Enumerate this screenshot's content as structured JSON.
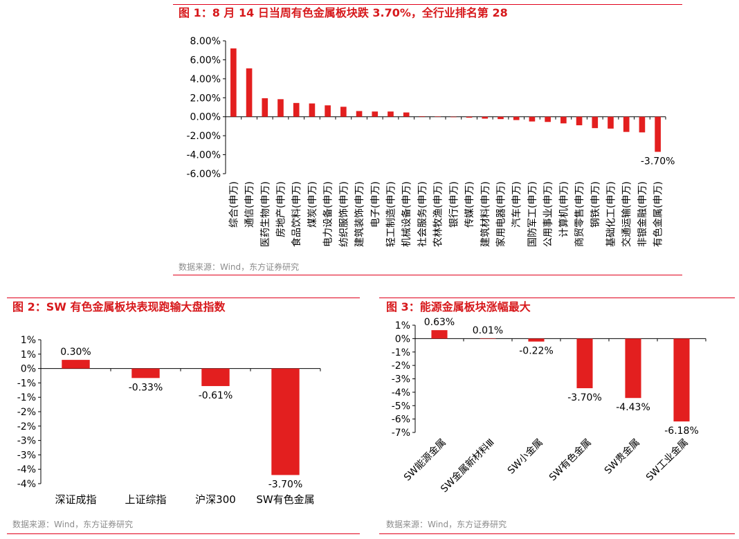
{
  "charts": [
    {
      "title": "图 1：8 月 14 日当周有色金属板块跌 3.70%，全行业排名第 28",
      "source": "数据来源：Wind，东方证券研究",
      "chart_data": {
        "type": "bar",
        "categories": [
          "综合(申万)",
          "通信(申万)",
          "医药生物(申万)",
          "房地产(申万)",
          "食品饮料(申万)",
          "煤炭(申万)",
          "电力设备(申万)",
          "纺织服饰(申万)",
          "建筑装饰(申万)",
          "电子(申万)",
          "轻工制造(申万)",
          "机械设备(申万)",
          "社会服务(申万)",
          "农林牧渔(申万)",
          "银行(申万)",
          "传媒(申万)",
          "建筑材料(申万)",
          "家用电器(申万)",
          "汽车(申万)",
          "国防军工(申万)",
          "公用事业(申万)",
          "计算机(申万)",
          "商贸零售(申万)",
          "钢铁(申万)",
          "基础化工(申万)",
          "交通运输(申万)",
          "非银金融(申万)",
          "有色金属(申万)"
        ],
        "values": [
          7.2,
          5.1,
          1.95,
          1.85,
          1.45,
          1.4,
          1.2,
          1.05,
          0.6,
          0.55,
          0.55,
          0.45,
          0.05,
          0.03,
          -0.05,
          -0.1,
          -0.2,
          -0.25,
          -0.35,
          -0.5,
          -0.55,
          -0.7,
          -0.9,
          -1.2,
          -1.25,
          -1.6,
          -1.65,
          -3.7
        ],
        "data_labels": [
          null,
          null,
          null,
          null,
          null,
          null,
          null,
          null,
          null,
          null,
          null,
          null,
          null,
          null,
          null,
          null,
          null,
          null,
          null,
          null,
          null,
          null,
          null,
          null,
          null,
          null,
          null,
          "-3.70%"
        ],
        "yticks": [
          "8.00%",
          "6.00%",
          "4.00%",
          "2.00%",
          "0.00%",
          "-2.00%",
          "-4.00%",
          "-6.00%"
        ],
        "ylim": [
          -6,
          8
        ],
        "color": "#e31f1f"
      }
    },
    {
      "title": "图 2：SW 有色金属板块表现跑输大盘指数",
      "source": "数据来源：Wind，东方证券研究",
      "chart_data": {
        "type": "bar",
        "categories": [
          "深证成指",
          "上证综指",
          "沪深300",
          "SW有色金属"
        ],
        "values": [
          0.3,
          -0.33,
          -0.61,
          -3.7
        ],
        "data_labels": [
          "0.30%",
          "-0.33%",
          "-0.61%",
          "-3.70%"
        ],
        "yticks": [
          "1%",
          "1%",
          "0%",
          "-1%",
          "-1%",
          "-2%",
          "-2%",
          "-3%",
          "-3%",
          "-4%",
          "-4%"
        ],
        "ylim": [
          -4,
          1
        ],
        "color": "#e31f1f"
      }
    },
    {
      "title": "图 3：能源金属板块涨幅最大",
      "source": "数据来源：Wind，东方证券研究",
      "chart_data": {
        "type": "bar",
        "categories": [
          "SW能源金属",
          "SW金属新材料Ⅲ",
          "SW小金属",
          "SW有色金属",
          "SW贵金属",
          "SW工业金属"
        ],
        "values": [
          0.63,
          0.01,
          -0.22,
          -3.7,
          -4.43,
          -6.18
        ],
        "data_labels": [
          "0.63%",
          "0.01%",
          "-0.22%",
          "-3.70%",
          "-4.43%",
          "-6.18%"
        ],
        "yticks": [
          "1%",
          "0%",
          "-1%",
          "-2%",
          "-3%",
          "-4%",
          "-5%",
          "-6%",
          "-7%"
        ],
        "ylim": [
          -7,
          1
        ],
        "color": "#e31f1f"
      }
    }
  ]
}
